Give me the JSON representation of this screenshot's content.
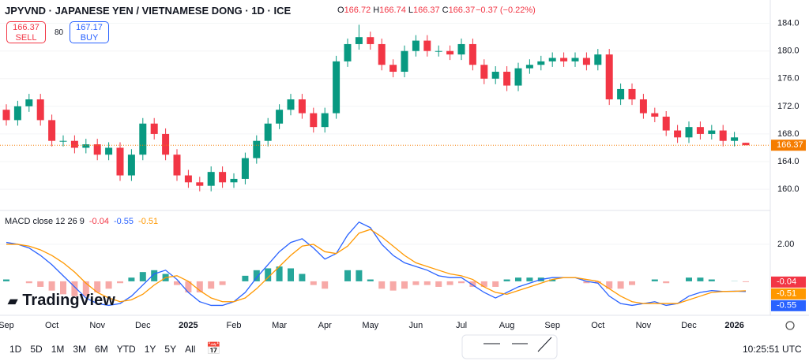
{
  "header": {
    "symbol": "JPYVND · JAPANESE YEN / VIETNAMESE DONG · 1D · ICE",
    "ohlc_labels": [
      "O",
      "H",
      "L",
      "C"
    ],
    "change": "−0.37 (−0.22%)",
    "sell_label": "SELL",
    "buy_label": "BUY",
    "buy_price": 167.17,
    "spread": 80
  },
  "logo": "TradingView",
  "toolbar": {
    "ranges": [
      "1D",
      "5D",
      "1M",
      "3M",
      "6M",
      "YTD",
      "1Y",
      "5Y",
      "All"
    ],
    "time": "10:25:51 UTC"
  },
  "chart_data": [
    {
      "type": "candlestick",
      "up_color": "#089981",
      "down_color": "#f23645",
      "last_color": "#f57c00",
      "grid": true,
      "ylim": [
        157.5,
        185.1
      ],
      "yticks": [
        {
          "value": 160,
          "label": "160.0"
        },
        {
          "value": 164,
          "label": "164.0"
        },
        {
          "value": 168,
          "label": "168.0"
        },
        {
          "value": 172,
          "label": "172.0"
        },
        {
          "value": 176,
          "label": "176.0"
        },
        {
          "value": 180,
          "label": "180.0"
        },
        {
          "value": 184,
          "label": "184.0"
        }
      ],
      "categories": [
        "Sep",
        null,
        null,
        null,
        "Oct",
        null,
        null,
        null,
        "Nov",
        null,
        null,
        null,
        "Dec",
        null,
        null,
        null,
        "2025",
        null,
        null,
        null,
        "Feb",
        null,
        null,
        null,
        "Mar",
        null,
        null,
        null,
        "Apr",
        null,
        null,
        null,
        "May",
        null,
        null,
        null,
        "Jun",
        null,
        null,
        null,
        "Jul",
        null,
        null,
        null,
        "Aug",
        null,
        null,
        null,
        "Sep",
        null,
        null,
        null,
        "Oct",
        null,
        null,
        null,
        "Nov",
        null,
        null,
        null,
        "Dec",
        null,
        null,
        null,
        "2026",
        null
      ],
      "open": [
        171.5,
        170,
        172,
        173,
        170,
        167,
        167,
        166,
        166.5,
        165,
        166,
        162,
        165,
        169.5,
        168,
        165,
        162,
        161,
        160.5,
        162.5,
        161,
        161.5,
        164.5,
        167,
        169.5,
        171.5,
        173,
        171,
        169,
        171,
        178.5,
        181,
        182,
        181,
        178,
        177,
        180,
        181.5,
        180,
        180,
        179.5,
        181,
        178,
        176,
        177,
        175,
        177.5,
        178,
        178.5,
        179,
        178.5,
        179,
        178,
        179.5,
        173,
        174.5,
        173,
        171,
        170.5,
        168.5,
        167.5,
        169,
        168,
        168.5,
        167,
        166.72
      ],
      "high": [
        172.3,
        172.8,
        173.8,
        173.8,
        170.8,
        167.8,
        167.8,
        167.3,
        167.3,
        166.8,
        166.8,
        165.8,
        170.3,
        170.3,
        168.8,
        165.8,
        162.8,
        161.8,
        163.3,
        163.3,
        162.3,
        165.3,
        167.8,
        170.3,
        172.3,
        173.8,
        173.8,
        171.8,
        171.8,
        179.3,
        181.8,
        183.8,
        182.8,
        181.8,
        178.8,
        180.8,
        182.3,
        182.3,
        180.8,
        180.8,
        181.8,
        181.8,
        178.8,
        177.8,
        177.8,
        178.3,
        178.8,
        179.3,
        179.8,
        179.8,
        179.8,
        179.8,
        180.3,
        180.3,
        175.3,
        175.3,
        173.8,
        171.8,
        171.3,
        169.3,
        169.8,
        169.8,
        169.3,
        169.3,
        168.3,
        166.74
      ],
      "low": [
        169.2,
        169.2,
        171.2,
        169.2,
        166.2,
        166.2,
        165.2,
        165.2,
        164.2,
        164.2,
        161.2,
        161.2,
        164.2,
        167.2,
        164.2,
        161.2,
        160.2,
        159.7,
        159.7,
        160.2,
        160.2,
        160.7,
        163.7,
        166.2,
        168.7,
        170.7,
        170.2,
        168.2,
        168.2,
        170.2,
        177.7,
        180.2,
        180.2,
        177.2,
        176.2,
        176.2,
        179.2,
        179.2,
        179.2,
        178.7,
        178.7,
        177.2,
        175.2,
        175.2,
        174.2,
        174.2,
        176.7,
        177.2,
        177.7,
        177.7,
        177.7,
        177.2,
        177.2,
        172.2,
        172.2,
        172.2,
        170.2,
        169.7,
        167.7,
        166.7,
        166.7,
        167.2,
        167.2,
        166.2,
        166.2,
        166.37
      ],
      "close": [
        170,
        172,
        173,
        170,
        167,
        167,
        166,
        166.5,
        165,
        166,
        162,
        165,
        169.5,
        168,
        165,
        162,
        161,
        160.5,
        162.5,
        161,
        161.5,
        164.5,
        167,
        169.5,
        171.5,
        173,
        171,
        169,
        171,
        178.5,
        181,
        182,
        181,
        178,
        177,
        180,
        181.5,
        180,
        180,
        179.5,
        181,
        178,
        176,
        177,
        175,
        177.5,
        178,
        178.5,
        179,
        178.5,
        179,
        178,
        179.5,
        173,
        174.5,
        173,
        171,
        170.5,
        168.5,
        167.5,
        169,
        168,
        168.5,
        167,
        167.5,
        166.37
      ]
    },
    {
      "type": "macd",
      "title": "MACD close 12 26 9",
      "ylim": [
        -1.75,
        3.7
      ],
      "yticks": [
        {
          "value": 2,
          "label": "2.00"
        }
      ],
      "series": [
        {
          "kind": "histogram",
          "color": "#f23645",
          "up_color": "#26a69a",
          "down_color": "#f7a9a7",
          "values": [
            0.1,
            0,
            -0.1,
            -0.3,
            -0.5,
            -0.7,
            -0.8,
            -0.8,
            -0.6,
            -0.4,
            -0.1,
            0.2,
            0.5,
            0.6,
            0.4,
            -0.2,
            -0.6,
            -0.6,
            -0.4,
            -0.2,
            0,
            0.3,
            0.6,
            0.7,
            0.8,
            0.7,
            0.4,
            -0.2,
            -0.4,
            0,
            0.6,
            0.6,
            0.1,
            -0.4,
            -0.5,
            -0.4,
            -0.2,
            -0.2,
            -0.3,
            -0.2,
            -0.1,
            -0.3,
            -0.3,
            -0.3,
            0.1,
            0.2,
            0.2,
            0.2,
            0.1,
            0,
            0,
            -0.1,
            -0.1,
            -0.4,
            -0.4,
            -0.2,
            0,
            0.1,
            -0.1,
            0,
            0.2,
            0.2,
            0.1,
            0,
            0.01,
            -0.04
          ]
        },
        {
          "kind": "line",
          "color": "#2962ff",
          "values": [
            2.1,
            2.0,
            1.8,
            1.4,
            0.9,
            0.3,
            -0.3,
            -0.9,
            -1.2,
            -1.3,
            -1.2,
            -0.8,
            -0.2,
            0.4,
            0.6,
            0.1,
            -0.6,
            -1.1,
            -1.3,
            -1.3,
            -1.1,
            -0.6,
            0.2,
            0.9,
            1.6,
            2.1,
            2.3,
            1.8,
            1.2,
            1.5,
            2.5,
            3.2,
            2.9,
            2.0,
            1.4,
            1.0,
            0.8,
            0.6,
            0.3,
            0.2,
            0.2,
            -0.2,
            -0.6,
            -0.9,
            -0.6,
            -0.3,
            -0.1,
            0.1,
            0.2,
            0.2,
            0.2,
            0.0,
            -0.1,
            -0.8,
            -1.2,
            -1.3,
            -1.2,
            -1.1,
            -1.3,
            -1.2,
            -0.8,
            -0.6,
            -0.5,
            -0.55,
            -0.53,
            -0.55
          ]
        },
        {
          "kind": "line",
          "color": "#ff9800",
          "values": [
            2.0,
            2.0,
            1.9,
            1.7,
            1.4,
            1.0,
            0.5,
            -0.1,
            -0.6,
            -0.9,
            -1.1,
            -1.0,
            -0.7,
            -0.2,
            0.2,
            0.3,
            0.0,
            -0.5,
            -0.9,
            -1.1,
            -1.1,
            -0.9,
            -0.4,
            0.2,
            0.8,
            1.4,
            1.9,
            2.0,
            1.6,
            1.5,
            1.9,
            2.6,
            2.8,
            2.4,
            1.9,
            1.4,
            1.0,
            0.8,
            0.6,
            0.4,
            0.3,
            0.1,
            -0.3,
            -0.6,
            -0.7,
            -0.5,
            -0.3,
            -0.1,
            0.1,
            0.2,
            0.2,
            0.1,
            0.0,
            -0.4,
            -0.8,
            -1.1,
            -1.2,
            -1.2,
            -1.2,
            -1.2,
            -1.0,
            -0.8,
            -0.6,
            -0.55,
            -0.54,
            -0.51
          ]
        }
      ]
    }
  ]
}
